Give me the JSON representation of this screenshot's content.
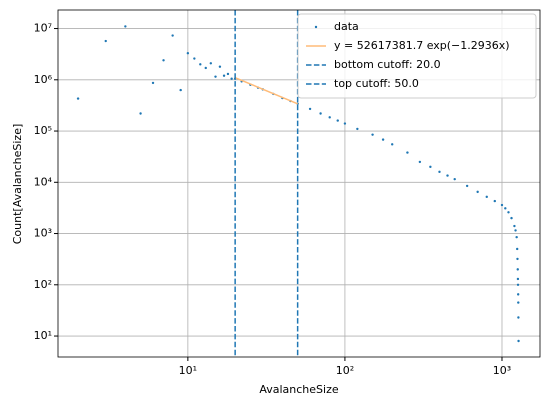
{
  "chart_data": {
    "type": "scatter",
    "xlabel": "AvalancheSize",
    "ylabel": "Count[AvalancheSize]",
    "xscale": "log",
    "yscale": "log",
    "xlim": [
      1.49,
      1746
    ],
    "ylim": [
      3.9,
      23000000
    ],
    "xticks": [
      {
        "value": 10,
        "label": "10¹"
      },
      {
        "value": 100,
        "label": "10²"
      },
      {
        "value": 1000,
        "label": "10³"
      }
    ],
    "yticks": [
      {
        "value": 10,
        "label": "10¹"
      },
      {
        "value": 100,
        "label": "10²"
      },
      {
        "value": 1000,
        "label": "10³"
      },
      {
        "value": 10000,
        "label": "10⁴"
      },
      {
        "value": 100000,
        "label": "10⁵"
      },
      {
        "value": 1000000,
        "label": "10⁶"
      },
      {
        "value": 10000000,
        "label": "10⁷"
      }
    ],
    "grid": true,
    "legend": "upper right",
    "series": [
      {
        "name": "data",
        "color": "#1f77b4",
        "x": [
          2,
          3,
          4,
          5,
          6,
          7,
          8,
          9,
          10,
          11,
          12,
          13,
          14,
          15,
          16,
          17,
          18,
          19,
          20,
          22,
          25,
          28,
          30,
          35,
          40,
          45,
          50,
          60,
          70,
          80,
          90,
          100,
          120,
          150,
          175,
          200,
          250,
          300,
          350,
          400,
          450,
          500,
          600,
          700,
          800,
          900,
          1000,
          1050,
          1100,
          1150,
          1200,
          1220,
          1240,
          1250,
          1255,
          1260,
          1263,
          1265,
          1268,
          1270,
          1272,
          1275
        ],
        "values": [
          430000,
          5700000,
          11000000,
          220000,
          870000,
          2400000,
          7300000,
          630000,
          3300000,
          2600000,
          2000000,
          1700000,
          2100000,
          1150000,
          1800000,
          1200000,
          1300000,
          1050000,
          1050000,
          930000,
          800000,
          700000,
          650000,
          530000,
          440000,
          385000,
          340000,
          270000,
          220000,
          185000,
          160000,
          140000,
          110000,
          85000,
          68000,
          55000,
          38000,
          25000,
          20000,
          16000,
          13500,
          11500,
          8500,
          6500,
          5200,
          4300,
          3600,
          3100,
          2600,
          2000,
          1400,
          1150,
          850,
          500,
          320,
          200,
          130,
          100,
          65,
          45,
          23,
          8
        ]
      },
      {
        "name": "y = 52617381.7 exp(−1.2936x)",
        "color": "#ffbb78",
        "type": "line",
        "x": [
          20,
          50
        ],
        "values": [
          1100000,
          340000
        ]
      }
    ],
    "cutoffs": [
      {
        "name": "bottom cutoff: 20.0",
        "x": 20,
        "color": "#1f77b4"
      },
      {
        "name": "top cutoff: 50.0",
        "x": 50,
        "color": "#1f77b4"
      }
    ]
  }
}
